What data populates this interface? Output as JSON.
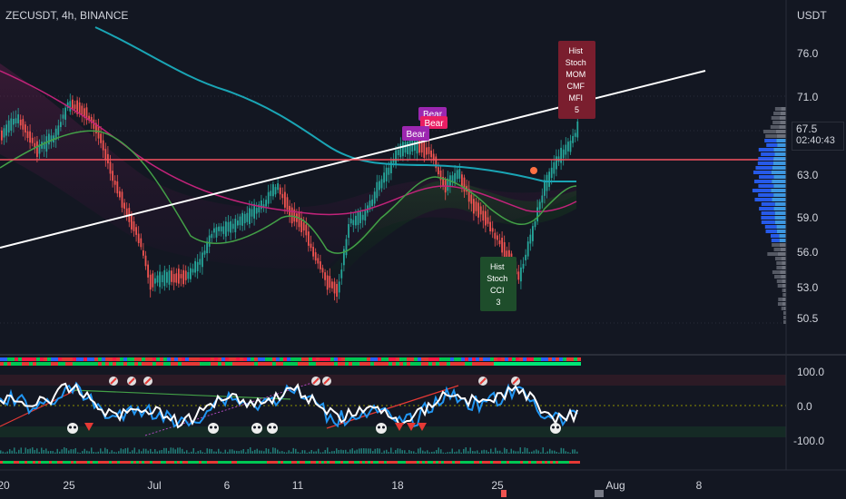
{
  "header": {
    "symbol": "ZECUSDT, 4h, BINANCE",
    "unit": "USDT"
  },
  "price_axis": {
    "ticks": [
      "76.0",
      "71.0",
      "63.0",
      "59.0",
      "56.0",
      "53.0",
      "50.5"
    ],
    "last_price": "67.5",
    "countdown": "02:40:43"
  },
  "oscillator_axis": {
    "ticks": [
      "100.0",
      "0.0",
      "-100.0"
    ]
  },
  "time_axis": {
    "ticks": [
      "20",
      "25",
      "Jul",
      "6",
      "11",
      "18",
      "25",
      "Aug",
      "8"
    ]
  },
  "signals": {
    "top_box": [
      "Hist",
      "Stoch",
      "MOM",
      "CMF",
      "MFI",
      "5"
    ],
    "bottom_box": [
      "Hist",
      "Stoch",
      "CCI",
      "3"
    ],
    "bear_labels": [
      "Bear",
      "Bear",
      "Bear"
    ]
  },
  "colors": {
    "background": "#131722",
    "bull": "#26a69a",
    "bear": "#ef5350",
    "trendline": "#ffffff",
    "horizontal_line": "#f7525f",
    "ma_teal": "#1aa5b5",
    "ma_pink": "#c2237a",
    "ma_green": "#43a047"
  }
}
